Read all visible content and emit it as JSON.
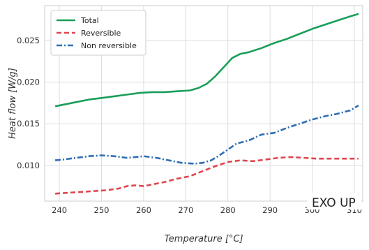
{
  "chart_data": {
    "type": "line",
    "title": "",
    "xlabel": "Temperature [°C]",
    "ylabel": "Heat flow [W/g]",
    "xlim": [
      236.5,
      312
    ],
    "ylim": [
      0.0057,
      0.0292
    ],
    "xticks": [
      240,
      250,
      260,
      270,
      280,
      290,
      300,
      310
    ],
    "yticks": [
      0.01,
      0.015,
      0.02,
      0.025
    ],
    "xtick_labels": [
      "240",
      "250",
      "260",
      "270",
      "280",
      "290",
      "300",
      "310"
    ],
    "ytick_labels": [
      "0.010",
      "0.015",
      "0.020",
      "0.025"
    ],
    "grid": true,
    "legend_position": "top-left",
    "annotation": "EXO UP",
    "series": [
      {
        "name": "Total",
        "color": "#1a9e5a",
        "style": "solid",
        "x": [
          239,
          241,
          244,
          247,
          250,
          253,
          256,
          259,
          262,
          265,
          268,
          271,
          273,
          275,
          277,
          279,
          281,
          283,
          285,
          288,
          291,
          294,
          297,
          300,
          303,
          306,
          309,
          311
        ],
        "y": [
          0.0171,
          0.0173,
          0.0176,
          0.0179,
          0.0181,
          0.0183,
          0.0185,
          0.0187,
          0.0188,
          0.0188,
          0.0189,
          0.019,
          0.0193,
          0.0198,
          0.0207,
          0.0218,
          0.0229,
          0.0234,
          0.0236,
          0.0241,
          0.0247,
          0.0252,
          0.0258,
          0.0264,
          0.0269,
          0.0274,
          0.0279,
          0.0282
        ]
      },
      {
        "name": "Reversible",
        "color": "#e0464e",
        "style": "dashed",
        "x": [
          239,
          242,
          245,
          248,
          251,
          254,
          256,
          258,
          260,
          262,
          265,
          268,
          271,
          274,
          277,
          280,
          283,
          286,
          289,
          292,
          295,
          298,
          301,
          304,
          307,
          311
        ],
        "y": [
          0.0066,
          0.0067,
          0.0068,
          0.0069,
          0.007,
          0.0072,
          0.0075,
          0.0076,
          0.0075,
          0.0077,
          0.008,
          0.0084,
          0.0087,
          0.0093,
          0.0099,
          0.0104,
          0.0106,
          0.0105,
          0.0107,
          0.0109,
          0.011,
          0.0109,
          0.0108,
          0.0108,
          0.0108,
          0.0108
        ]
      },
      {
        "name": "Non reversible",
        "color": "#2f6db5",
        "style": "dashdot",
        "x": [
          239,
          241,
          244,
          247,
          250,
          253,
          256,
          258,
          260,
          263,
          266,
          269,
          272,
          274,
          276,
          278,
          280,
          282,
          285,
          288,
          291,
          294,
          297,
          300,
          303,
          306,
          309,
          311
        ],
        "y": [
          0.0106,
          0.0107,
          0.0109,
          0.0111,
          0.0112,
          0.0111,
          0.0109,
          0.011,
          0.0111,
          0.0109,
          0.0106,
          0.0103,
          0.0102,
          0.0103,
          0.0106,
          0.0112,
          0.0119,
          0.0126,
          0.013,
          0.0137,
          0.0139,
          0.0145,
          0.015,
          0.0155,
          0.0159,
          0.0162,
          0.0166,
          0.0172
        ]
      }
    ]
  }
}
